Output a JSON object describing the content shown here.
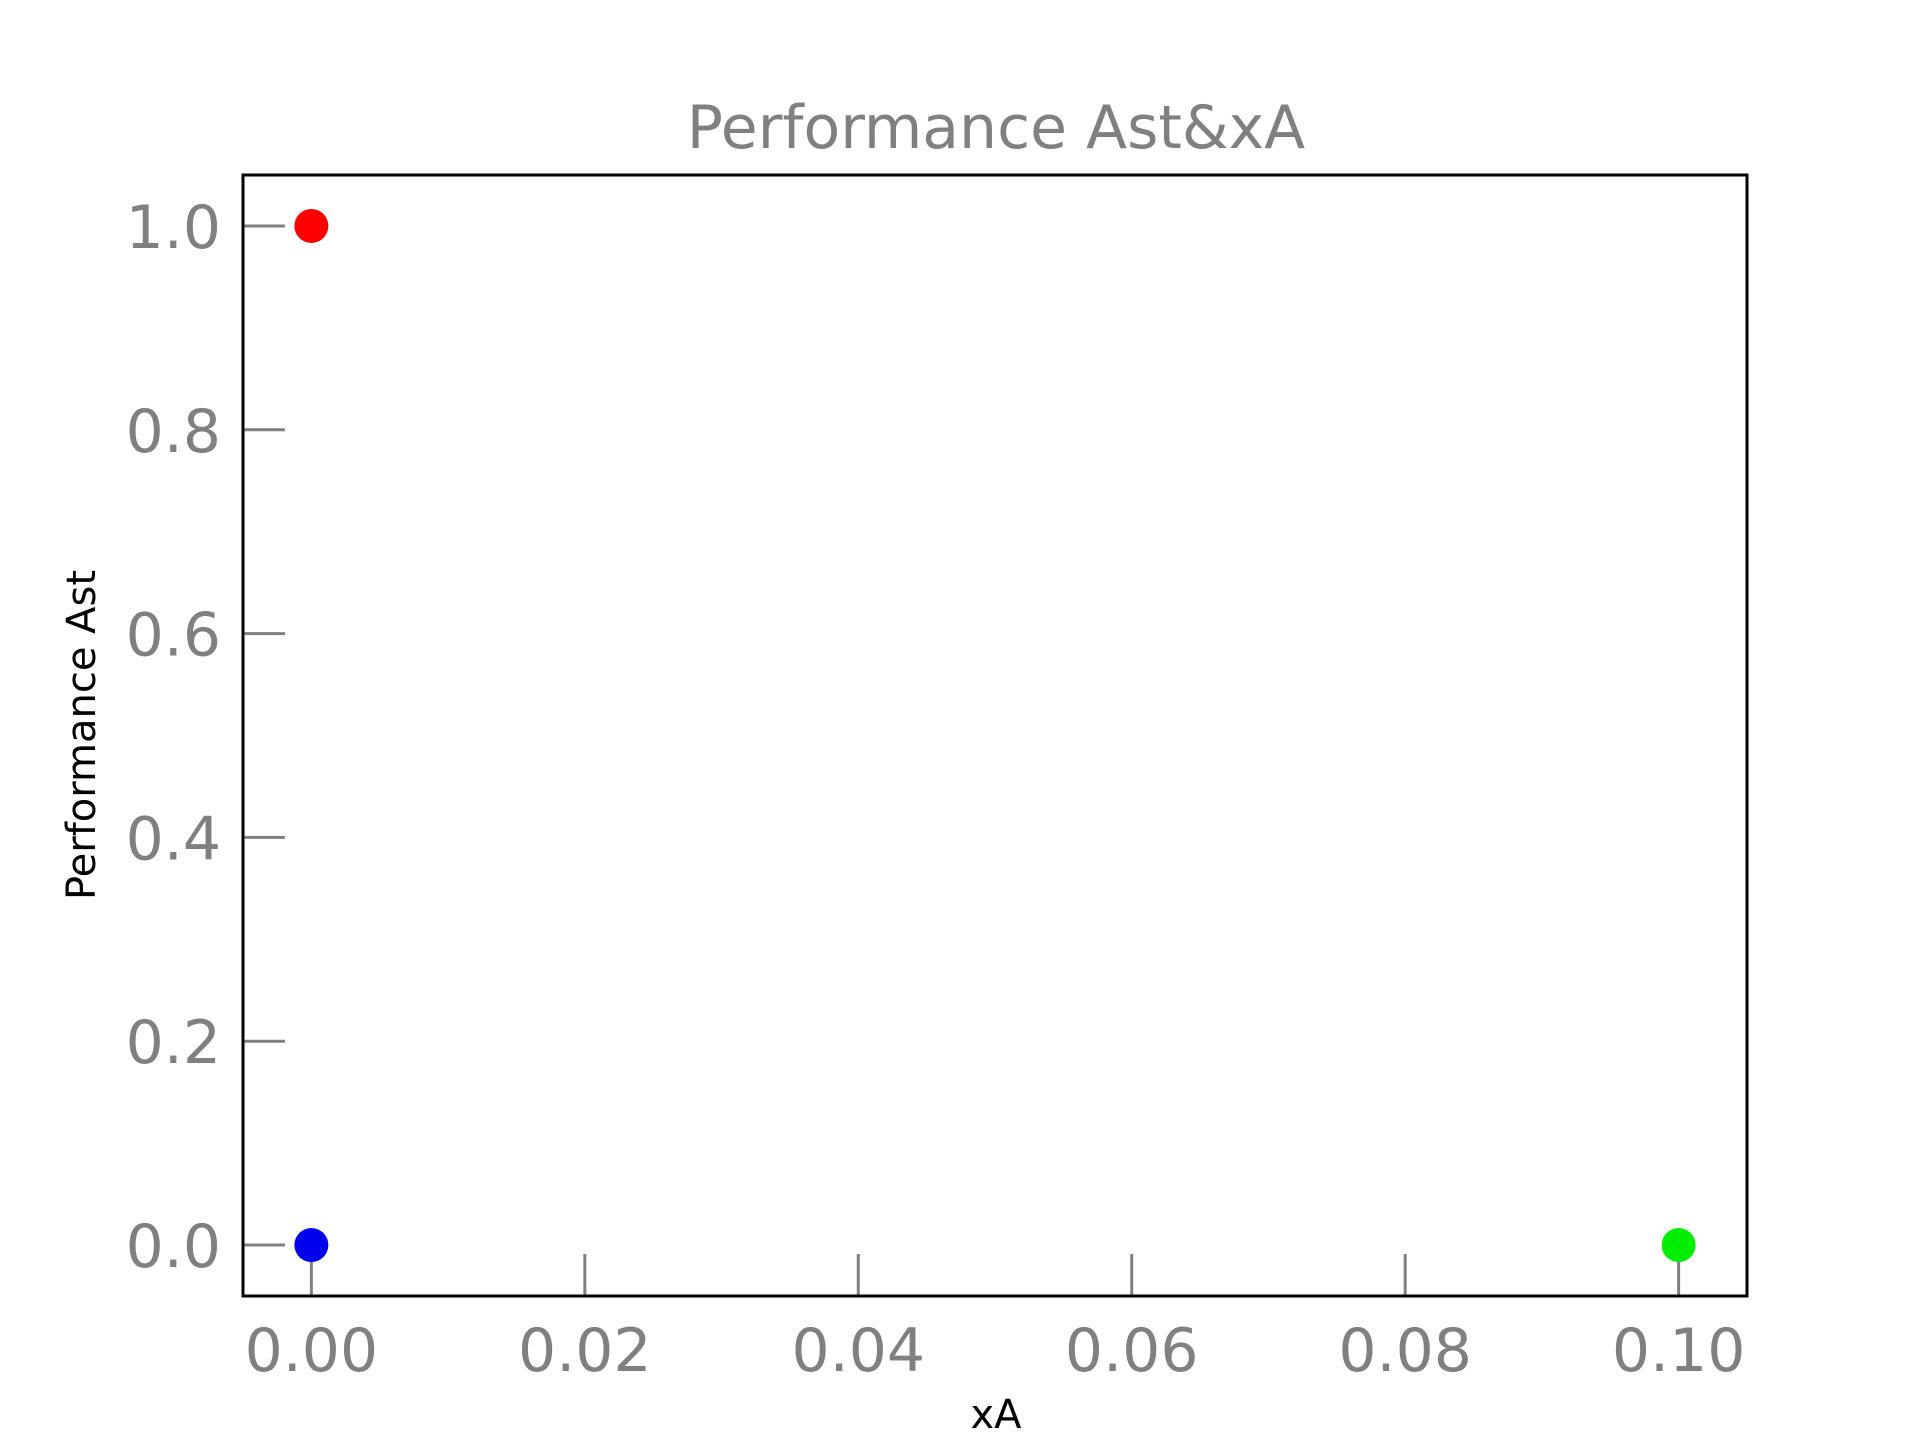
{
  "chart_data": {
    "type": "scatter",
    "title": "Performance Ast&xA",
    "xlabel": "xA",
    "ylabel": "Performance Ast",
    "xlim": [
      -0.005,
      0.105
    ],
    "ylim": [
      -0.05,
      1.05
    ],
    "xticks": [
      0.0,
      0.02,
      0.04,
      0.06,
      0.08,
      0.1
    ],
    "xtick_labels": [
      "0.00",
      "0.02",
      "0.04",
      "0.06",
      "0.08",
      "0.10"
    ],
    "yticks": [
      0.0,
      0.2,
      0.4,
      0.6,
      0.8,
      1.0
    ],
    "ytick_labels": [
      "0.0",
      "0.2",
      "0.4",
      "0.6",
      "0.8",
      "1.0"
    ],
    "grid": false,
    "points": [
      {
        "x": 0.0,
        "y": 1.0,
        "color": "#ff0000"
      },
      {
        "x": 0.0,
        "y": 0.0,
        "color": "#0000ee"
      },
      {
        "x": 0.1,
        "y": 0.0,
        "color": "#00ee00"
      }
    ]
  }
}
